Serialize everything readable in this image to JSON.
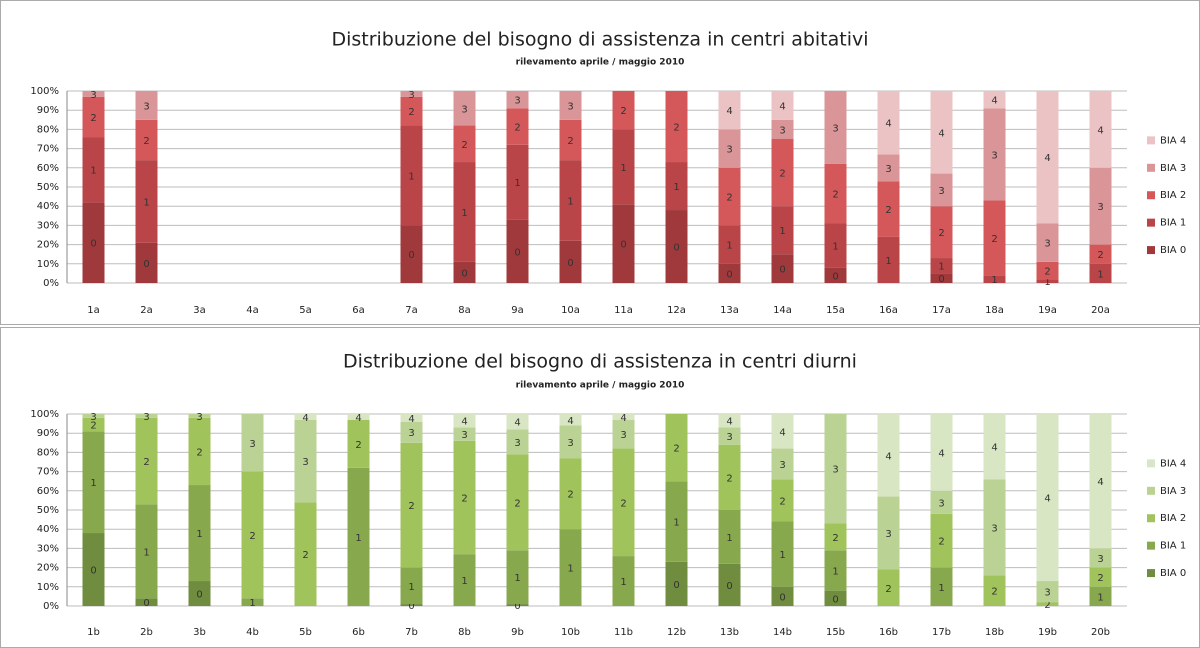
{
  "chart_data": [
    {
      "type": "stacked_bar_100",
      "title": "Distribuzione del bisogno di assistenza in centri abitativi",
      "subtitle": "rilevamento aprile / maggio 2010",
      "categories": [
        "1a",
        "2a",
        "3a",
        "4a",
        "5a",
        "6a",
        "7a",
        "8a",
        "9a",
        "10a",
        "11a",
        "12a",
        "13a",
        "14a",
        "15a",
        "16a",
        "17a",
        "18a",
        "19a",
        "20a"
      ],
      "series": [
        {
          "name": "BIA 0",
          "label": "0",
          "color": "#a0393c",
          "values": [
            42,
            21,
            0,
            0,
            0,
            0,
            30,
            11,
            33,
            22,
            41,
            38,
            10,
            15,
            8,
            0,
            5,
            0,
            0,
            0
          ]
        },
        {
          "name": "BIA 1",
          "label": "1",
          "color": "#ba4548",
          "values": [
            34,
            43,
            0,
            0,
            0,
            0,
            52,
            52,
            39,
            42,
            39,
            25,
            20,
            25,
            23,
            24,
            8,
            4,
            2,
            10
          ]
        },
        {
          "name": "BIA 2",
          "label": "2",
          "color": "#d4575a",
          "values": [
            21,
            21,
            0,
            0,
            0,
            0,
            15,
            19,
            19,
            21,
            20,
            37,
            30,
            35,
            31,
            29,
            27,
            39,
            9,
            10
          ]
        },
        {
          "name": "BIA 3",
          "label": "3",
          "color": "#d99597",
          "values": [
            3,
            15,
            0,
            0,
            0,
            0,
            3,
            18,
            9,
            15,
            0,
            0,
            20,
            10,
            38,
            14,
            17,
            48,
            20,
            40
          ]
        },
        {
          "name": "BIA 4",
          "label": "4",
          "color": "#ecc3c4",
          "values": [
            0,
            0,
            0,
            0,
            0,
            0,
            0,
            0,
            0,
            0,
            0,
            0,
            20,
            15,
            0,
            33,
            43,
            9,
            69,
            40
          ]
        }
      ],
      "ylim": [
        0,
        100
      ],
      "yticks": [
        {
          "value": 0,
          "label": "0%"
        },
        {
          "value": 10,
          "label": "10%"
        },
        {
          "value": 20,
          "label": "20%"
        },
        {
          "value": 30,
          "label": "30%"
        },
        {
          "value": 40,
          "label": "40%"
        },
        {
          "value": 50,
          "label": "50%"
        },
        {
          "value": 60,
          "label": "60%"
        },
        {
          "value": 70,
          "label": "70%"
        },
        {
          "value": 80,
          "label": "80%"
        },
        {
          "value": 90,
          "label": "90%"
        },
        {
          "value": 100,
          "label": "100%"
        }
      ],
      "grid": true,
      "legend": "right"
    },
    {
      "type": "stacked_bar_100",
      "title": "Distribuzione del bisogno di assistenza in centri diurni",
      "subtitle": "rilevamento aprile / maggio 2010",
      "categories": [
        "1b",
        "2b",
        "3b",
        "4b",
        "5b",
        "6b",
        "7b",
        "8b",
        "9b",
        "10b",
        "11b",
        "12b",
        "13b",
        "14b",
        "15b",
        "16b",
        "17b",
        "18b",
        "19b",
        "20b"
      ],
      "series": [
        {
          "name": "BIA 0",
          "label": "0",
          "color": "#6f8c3f",
          "values": [
            38,
            4,
            13,
            0,
            0,
            0,
            1,
            0,
            1,
            0,
            0,
            23,
            22,
            10,
            8,
            0,
            0,
            0,
            0,
            0
          ]
        },
        {
          "name": "BIA 1",
          "label": "1",
          "color": "#88a84d",
          "values": [
            53,
            49,
            50,
            4,
            0,
            72,
            19,
            27,
            28,
            40,
            26,
            42,
            28,
            34,
            21,
            0,
            20,
            0,
            0,
            10
          ]
        },
        {
          "name": "BIA 2",
          "label": "2",
          "color": "#a0c35c",
          "values": [
            7,
            45,
            35,
            66,
            54,
            25,
            65,
            59,
            50,
            37,
            56,
            35,
            34,
            22,
            14,
            19,
            28,
            16,
            2,
            10
          ]
        },
        {
          "name": "BIA 3",
          "label": "3",
          "color": "#bad293",
          "values": [
            2,
            2,
            2,
            30,
            43,
            0,
            11,
            7,
            13,
            17,
            15,
            0,
            9,
            16,
            57,
            38,
            12,
            50,
            11,
            10
          ]
        },
        {
          "name": "BIA 4",
          "label": "4",
          "color": "#d9e6c3",
          "values": [
            0,
            0,
            0,
            0,
            3,
            3,
            4,
            7,
            8,
            6,
            3,
            0,
            7,
            18,
            0,
            43,
            40,
            34,
            87,
            70
          ]
        }
      ],
      "ylim": [
        0,
        100
      ],
      "yticks": [
        {
          "value": 0,
          "label": "0%"
        },
        {
          "value": 10,
          "label": "10%"
        },
        {
          "value": 20,
          "label": "20%"
        },
        {
          "value": 30,
          "label": "30%"
        },
        {
          "value": 40,
          "label": "40%"
        },
        {
          "value": 50,
          "label": "50%"
        },
        {
          "value": 60,
          "label": "60%"
        },
        {
          "value": 70,
          "label": "70%"
        },
        {
          "value": 80,
          "label": "80%"
        },
        {
          "value": 90,
          "label": "90%"
        },
        {
          "value": 100,
          "label": "100%"
        }
      ],
      "grid": true,
      "legend": "right"
    }
  ]
}
